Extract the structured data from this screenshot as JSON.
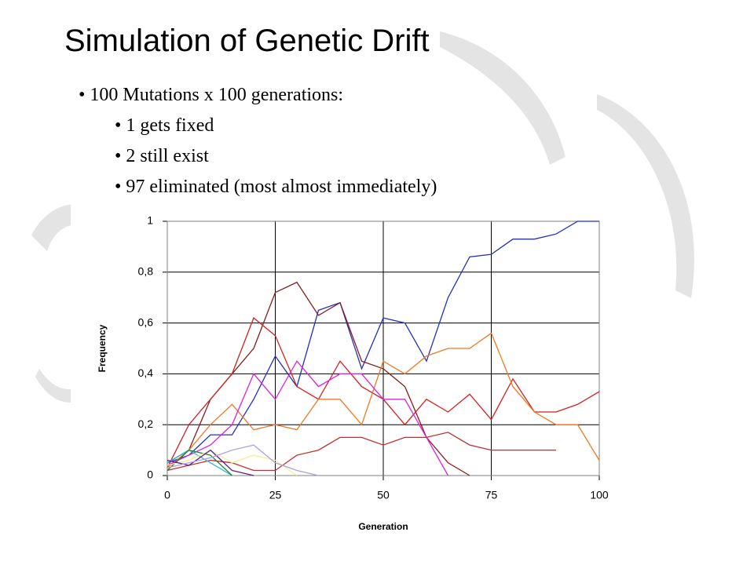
{
  "slide": {
    "title": "Simulation of Genetic Drift",
    "bullet": "100 Mutations x 100 generations:",
    "subbullets": [
      "1 gets fixed",
      "2 still exist",
      "97 eliminated (most almost immediately)"
    ]
  },
  "chart_data": {
    "type": "line",
    "xlabel": "Generation",
    "ylabel": "Frequency",
    "x": [
      0,
      5,
      10,
      15,
      20,
      25,
      30,
      35,
      40,
      45,
      50,
      55,
      60,
      65,
      70,
      75,
      80,
      85,
      90,
      95,
      100
    ],
    "xlim": [
      0,
      100
    ],
    "xticks": [
      0,
      25,
      50,
      75,
      100
    ],
    "ylim": [
      0,
      1
    ],
    "yticks": [
      0,
      {
        "value": 0.2,
        "label": "0,2"
      },
      {
        "value": 0.4,
        "label": "0,4"
      },
      {
        "value": 0.6,
        "label": "0,6"
      },
      {
        "value": 0.8,
        "label": "0,8"
      },
      1
    ],
    "grid": true,
    "series": [
      {
        "color": "#2030c0",
        "values": [
          0.05,
          0.08,
          0.16,
          0.16,
          0.3,
          0.47,
          0.35,
          0.65,
          0.68,
          0.42,
          0.62,
          0.6,
          0.45,
          0.7,
          0.86,
          0.87,
          0.93,
          0.93,
          0.95,
          1,
          1
        ]
      },
      {
        "color": "#8b1a1a",
        "values": [
          0.05,
          0.1,
          0.3,
          0.4,
          0.5,
          0.72,
          0.76,
          0.63,
          0.68,
          0.45,
          0.42,
          0.35,
          0.15,
          0.05,
          0,
          null,
          null,
          null,
          null,
          null,
          null
        ]
      },
      {
        "color": "#d42020",
        "values": [
          0.03,
          0.2,
          0.3,
          0.4,
          0.62,
          0.55,
          0.35,
          0.3,
          0.45,
          0.35,
          0.3,
          0.2,
          0.3,
          0.25,
          0.32,
          0.22,
          0.38,
          0.25,
          0.25,
          0.28,
          0.33
        ]
      },
      {
        "color": "#f07820",
        "values": [
          0.03,
          0.1,
          0.2,
          0.28,
          0.18,
          0.2,
          0.18,
          0.3,
          0.3,
          0.2,
          0.45,
          0.4,
          0.47,
          0.5,
          0.5,
          0.56,
          0.35,
          0.25,
          0.2,
          0.2,
          0.06
        ]
      },
      {
        "color": "#e020e0",
        "values": [
          0.04,
          0.08,
          0.12,
          0.2,
          0.4,
          0.3,
          0.45,
          0.35,
          0.4,
          0.4,
          0.3,
          0.3,
          0.15,
          0,
          null,
          null,
          null,
          null,
          null,
          null,
          null
        ]
      },
      {
        "color": "#c03030",
        "values": [
          0.02,
          0.04,
          0.06,
          0.05,
          0.02,
          0.02,
          0.08,
          0.1,
          0.15,
          0.15,
          0.12,
          0.15,
          0.15,
          0.17,
          0.12,
          0.1,
          0.1,
          0.1,
          0.1,
          null,
          null
        ]
      },
      {
        "color": "#20c0d0",
        "values": [
          0.05,
          0.1,
          0.05,
          0,
          null,
          null,
          null,
          null,
          null,
          null,
          null,
          null,
          null,
          null,
          null,
          null,
          null,
          null,
          null,
          null,
          null
        ]
      },
      {
        "color": "#208040",
        "values": [
          0.02,
          0.1,
          0.08,
          0,
          null,
          null,
          null,
          null,
          null,
          null,
          null,
          null,
          null,
          null,
          null,
          null,
          null,
          null,
          null,
          null,
          null
        ]
      },
      {
        "color": "#f0f090",
        "values": [
          0.04,
          0.06,
          0.1,
          0.05,
          0.08,
          0.06,
          0,
          null,
          null,
          null,
          null,
          null,
          null,
          null,
          null,
          null,
          null,
          null,
          null,
          null,
          null
        ]
      },
      {
        "color": "#602090",
        "values": [
          0.06,
          0.04,
          0.1,
          0.02,
          0,
          null,
          null,
          null,
          null,
          null,
          null,
          null,
          null,
          null,
          null,
          null,
          null,
          null,
          null,
          null,
          null
        ]
      },
      {
        "color": "#b0a0e0",
        "values": [
          0.03,
          0.05,
          0.07,
          0.1,
          0.12,
          0.05,
          0.02,
          0,
          null,
          null,
          null,
          null,
          null,
          null,
          null,
          null,
          null,
          null,
          null,
          null,
          null
        ]
      }
    ]
  }
}
